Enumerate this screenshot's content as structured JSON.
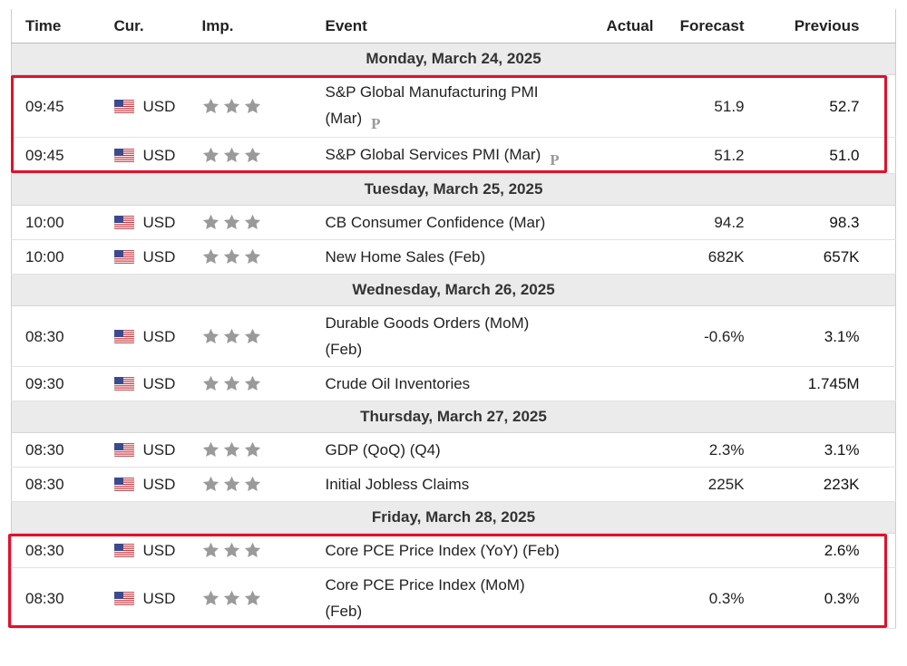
{
  "header": {
    "time": "Time",
    "currency": "Cur.",
    "importance": "Imp.",
    "event": "Event",
    "actual": "Actual",
    "forecast": "Forecast",
    "previous": "Previous"
  },
  "days": [
    {
      "label": "Monday, March 24, 2025",
      "highlight": true,
      "events": [
        {
          "time": "09:45",
          "currency": "USD",
          "event": "S&P Global Manufacturing PMI (Mar)",
          "badge": "P",
          "forecast": "51.9",
          "previous": "52.7"
        },
        {
          "time": "09:45",
          "currency": "USD",
          "event": "S&P Global Services PMI (Mar)",
          "badge": "P",
          "forecast": "51.2",
          "previous": "51.0"
        }
      ]
    },
    {
      "label": "Tuesday, March 25, 2025",
      "events": [
        {
          "time": "10:00",
          "currency": "USD",
          "event": "CB Consumer Confidence (Mar)",
          "forecast": "94.2",
          "previous": "98.3"
        },
        {
          "time": "10:00",
          "currency": "USD",
          "event": "New Home Sales (Feb)",
          "forecast": "682K",
          "previous": "657K"
        }
      ]
    },
    {
      "label": "Wednesday, March 26, 2025",
      "events": [
        {
          "time": "08:30",
          "currency": "USD",
          "event": "Durable Goods Orders (MoM) (Feb)",
          "forecast": "-0.6%",
          "previous": "3.1%"
        },
        {
          "time": "09:30",
          "currency": "USD",
          "event": "Crude Oil Inventories",
          "previous": "1.745M"
        }
      ]
    },
    {
      "label": "Thursday, March 27, 2025",
      "events": [
        {
          "time": "08:30",
          "currency": "USD",
          "event": "GDP (QoQ) (Q4)",
          "forecast": "2.3%",
          "previous": "3.1%"
        },
        {
          "time": "08:30",
          "currency": "USD",
          "event": "Initial Jobless Claims",
          "forecast": "225K",
          "previous": "223K"
        }
      ]
    },
    {
      "label": "Friday, March 28, 2025",
      "highlight": true,
      "events": [
        {
          "time": "08:30",
          "currency": "USD",
          "event": "Core PCE Price Index (YoY) (Feb)",
          "previous": "2.6%"
        },
        {
          "time": "08:30",
          "currency": "USD",
          "event": "Core PCE Price Index (MoM) (Feb)",
          "forecast": "0.3%",
          "previous": "0.3%"
        }
      ]
    }
  ]
}
